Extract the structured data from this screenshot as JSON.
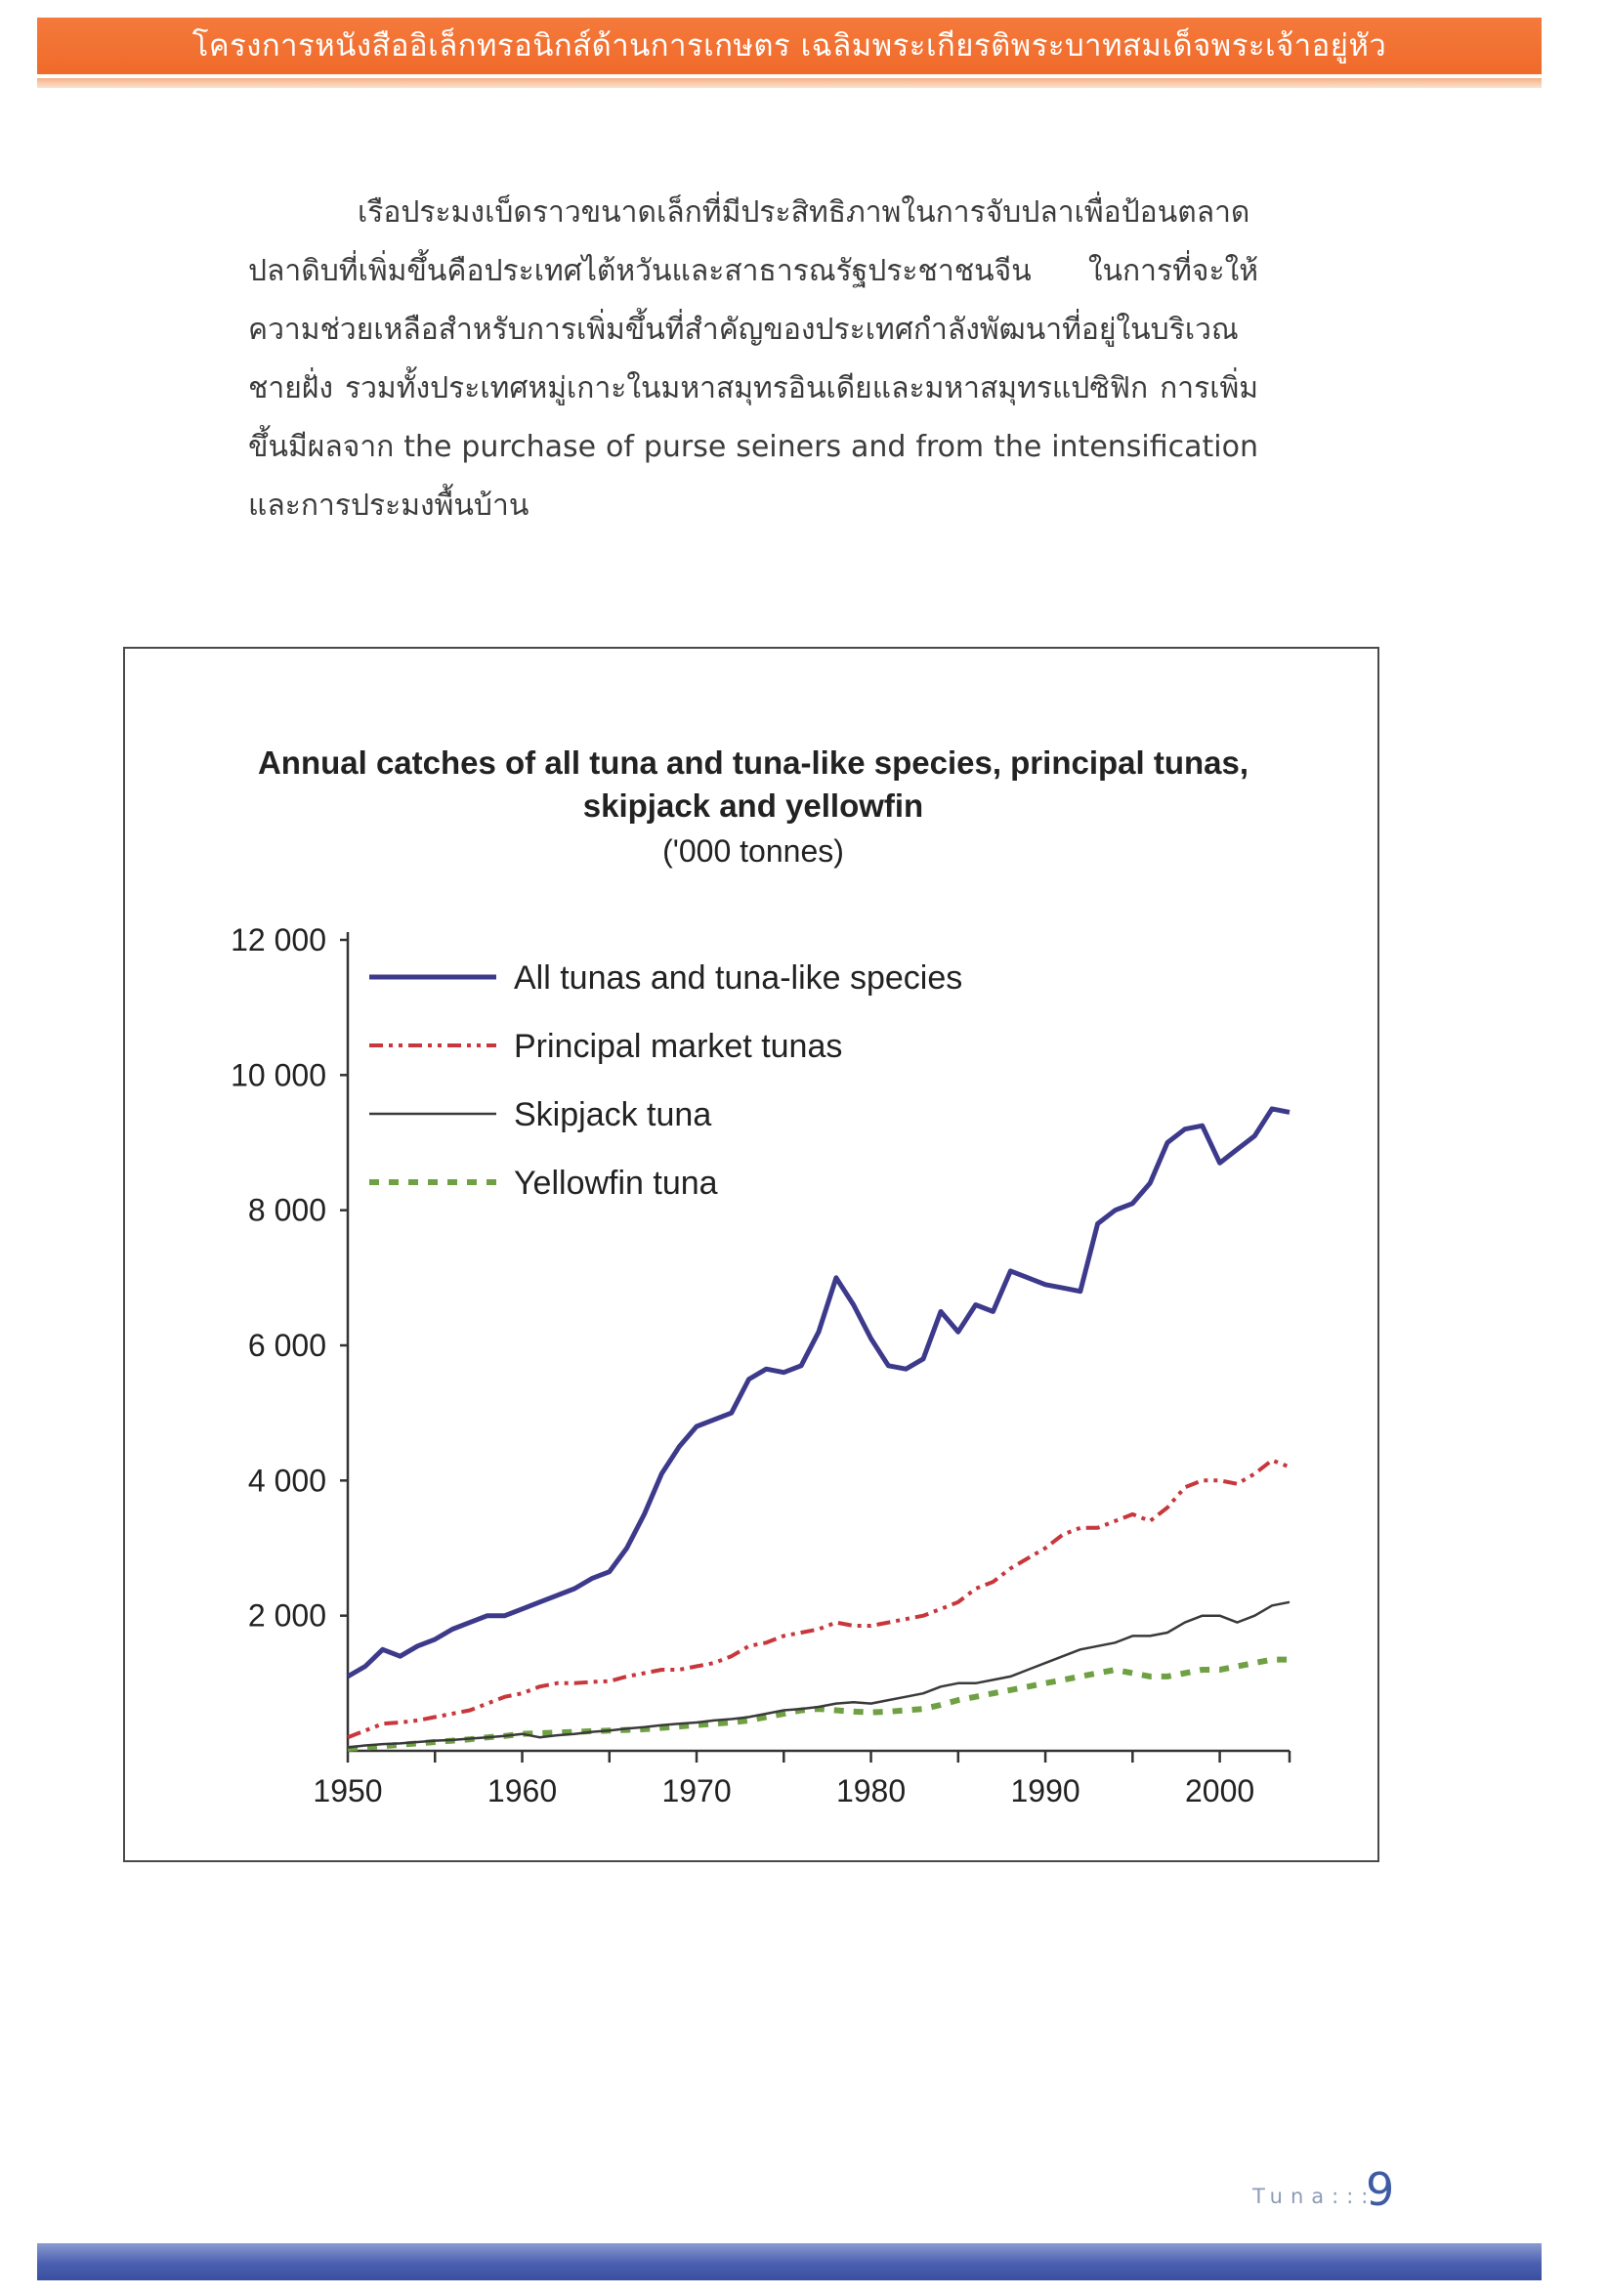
{
  "header": {
    "title": "โครงการหนังสืออิเล็กทรอนิกส์ด้านการเกษตร เฉลิมพระเกียรติพระบาทสมเด็จพระเจ้าอยู่หัว"
  },
  "body": {
    "paragraph": [
      "เรือประมงเบ็ดราวขนาดเล็กที่มีประสิทธิภาพในการจับปลาเพื่อป้อนตลาดปลาดิบที่เพิ่มขึ้นคือประเทศไต้หวันและสาธารณรัฐประชาชนจีน ในการที่จะให้ความช่วยเหลือสำหรับการเพิ่มขึ้นที่สำคัญของประเทศกำลังพัฒนาที่อยู่ในบริเวณชายฝั่ง รวมทั้งประเทศหมู่เกาะในมหาสมุทรอินเดียและมหาสมุทรแปซิฟิก การเพิ่มขึ้นมีผลจาก the purchase of purse seiners and from the intensification และการประมงพื้นบ้าน"
    ]
  },
  "chart_data": {
    "type": "line",
    "title": "Annual catches of all tuna and tuna-like species, principal tunas, skipjack and yellowfin",
    "title_lines": [
      "Annual catches of all tuna and tuna-like species, principal tunas,",
      "skipjack and yellowfin"
    ],
    "subtitle": "('000 tonnes)",
    "xlabel": "",
    "ylabel": "",
    "xlim": [
      1950,
      2004
    ],
    "ylim": [
      0,
      12000
    ],
    "x_ticks": [
      1950,
      1960,
      1970,
      1980,
      1990,
      2000
    ],
    "y_ticks": [
      2000,
      4000,
      6000,
      8000,
      10000,
      12000
    ],
    "y_tick_labels": [
      "2 000",
      "4 000",
      "6 000",
      "8 000",
      "10 000",
      "12 000"
    ],
    "grid": false,
    "legend_position": "top-left",
    "x": [
      1950,
      1951,
      1952,
      1953,
      1954,
      1955,
      1956,
      1957,
      1958,
      1959,
      1960,
      1961,
      1962,
      1963,
      1964,
      1965,
      1966,
      1967,
      1968,
      1969,
      1970,
      1971,
      1972,
      1973,
      1974,
      1975,
      1976,
      1977,
      1978,
      1979,
      1980,
      1981,
      1982,
      1983,
      1984,
      1985,
      1986,
      1987,
      1988,
      1989,
      1990,
      1991,
      1992,
      1993,
      1994,
      1995,
      1996,
      1997,
      1998,
      1999,
      2000,
      2001,
      2002,
      2003,
      2004
    ],
    "series": [
      {
        "name": "All tunas and tuna-like species",
        "color": "#3d3a8c",
        "dash": "solid",
        "width": 5,
        "values": [
          1100,
          1250,
          1500,
          1400,
          1550,
          1650,
          1800,
          1900,
          2000,
          2000,
          2100,
          2200,
          2300,
          2400,
          2550,
          2650,
          3000,
          3500,
          4100,
          4500,
          4800,
          4900,
          5000,
          5500,
          5650,
          5600,
          5700,
          6200,
          7000,
          6600,
          6100,
          5700,
          5650,
          5800,
          6500,
          6200,
          6600,
          6500,
          7100,
          7000,
          6900,
          6850,
          6800,
          7800,
          8000,
          8100,
          8400,
          9000,
          9200,
          9250,
          8700,
          8900,
          9100,
          9500,
          9450
        ]
      },
      {
        "name": "Principal market tunas",
        "color": "#c8373c",
        "dash": "14 6 4 6 4 6",
        "width": 4,
        "values": [
          200,
          300,
          400,
          420,
          450,
          500,
          550,
          600,
          700,
          800,
          850,
          950,
          1000,
          1000,
          1020,
          1030,
          1100,
          1150,
          1200,
          1200,
          1250,
          1300,
          1400,
          1550,
          1600,
          1700,
          1750,
          1800,
          1900,
          1850,
          1850,
          1900,
          1950,
          2000,
          2100,
          2200,
          2400,
          2500,
          2700,
          2850,
          3000,
          3200,
          3300,
          3300,
          3400,
          3500,
          3400,
          3600,
          3900,
          4000,
          4000,
          3950,
          4100,
          4300,
          4200
        ]
      },
      {
        "name": "Skipjack tuna",
        "color": "#3a3a3a",
        "dash": "solid",
        "width": 2.5,
        "values": [
          50,
          80,
          100,
          110,
          130,
          150,
          160,
          180,
          200,
          220,
          250,
          200,
          230,
          250,
          280,
          300,
          330,
          350,
          380,
          400,
          420,
          450,
          470,
          500,
          550,
          600,
          620,
          650,
          700,
          720,
          700,
          750,
          800,
          850,
          950,
          1000,
          1000,
          1050,
          1100,
          1200,
          1300,
          1400,
          1500,
          1550,
          1600,
          1700,
          1700,
          1750,
          1900,
          2000,
          2000,
          1900,
          2000,
          2150,
          2200
        ]
      },
      {
        "name": "Yellowfin tuna",
        "color": "#6fa043",
        "dash": "10 10",
        "width": 6,
        "values": [
          30,
          50,
          70,
          90,
          110,
          130,
          150,
          170,
          200,
          220,
          250,
          260,
          270,
          280,
          290,
          300,
          310,
          320,
          340,
          360,
          380,
          400,
          420,
          450,
          500,
          550,
          600,
          620,
          600,
          580,
          570,
          580,
          600,
          620,
          680,
          750,
          800,
          850,
          900,
          950,
          1000,
          1050,
          1100,
          1150,
          1200,
          1150,
          1100,
          1100,
          1150,
          1200,
          1200,
          1250,
          1300,
          1350,
          1350
        ]
      }
    ]
  },
  "footer": {
    "label": "Tuna:::",
    "page_number": "9"
  },
  "colors": {
    "header_orange": "#f06a2a",
    "footer_blue": "#3f5ba3"
  }
}
